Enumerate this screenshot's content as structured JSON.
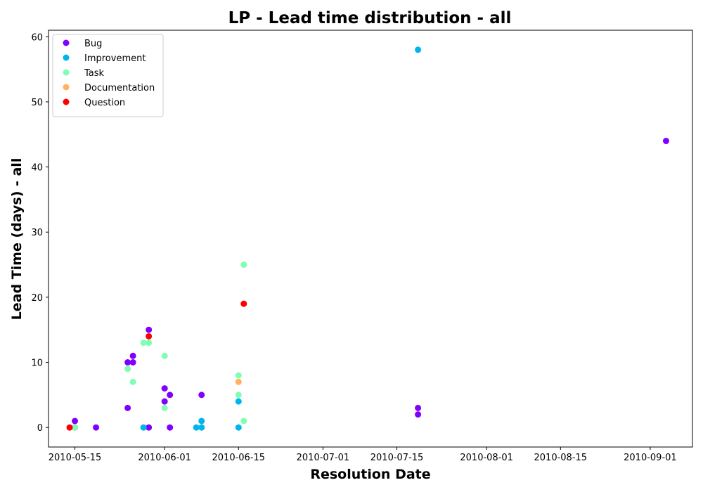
{
  "chart_data": {
    "type": "scatter",
    "title": "LP - Lead time distribution - all",
    "xlabel": "Resolution Date",
    "ylabel": "Lead Time (days) - all",
    "xlim": [
      "2010-05-10",
      "2010-09-09"
    ],
    "ylim": [
      -3,
      61
    ],
    "x_ticks": [
      "2010-05-15",
      "2010-06-01",
      "2010-06-15",
      "2010-07-01",
      "2010-07-15",
      "2010-08-01",
      "2010-08-15",
      "2010-09-01"
    ],
    "y_ticks": [
      0,
      10,
      20,
      30,
      40,
      50,
      60
    ],
    "grid": false,
    "legend_position": "upper-left",
    "series": [
      {
        "name": "Bug",
        "color": "#8000ff",
        "points": [
          {
            "x": "2010-05-15",
            "y": 1
          },
          {
            "x": "2010-05-15",
            "y": 0
          },
          {
            "x": "2010-05-19",
            "y": 0
          },
          {
            "x": "2010-05-25",
            "y": 10
          },
          {
            "x": "2010-05-25",
            "y": 3
          },
          {
            "x": "2010-05-26",
            "y": 11
          },
          {
            "x": "2010-05-26",
            "y": 10
          },
          {
            "x": "2010-05-29",
            "y": 15
          },
          {
            "x": "2010-05-29",
            "y": 0
          },
          {
            "x": "2010-06-01",
            "y": 6
          },
          {
            "x": "2010-06-01",
            "y": 4
          },
          {
            "x": "2010-06-02",
            "y": 5
          },
          {
            "x": "2010-06-02",
            "y": 0
          },
          {
            "x": "2010-06-08",
            "y": 5
          },
          {
            "x": "2010-07-19",
            "y": 3
          },
          {
            "x": "2010-07-19",
            "y": 2
          },
          {
            "x": "2010-09-04",
            "y": 44
          }
        ]
      },
      {
        "name": "Improvement",
        "color": "#00b5eb",
        "points": [
          {
            "x": "2010-05-28",
            "y": 0
          },
          {
            "x": "2010-06-07",
            "y": 0
          },
          {
            "x": "2010-06-08",
            "y": 1
          },
          {
            "x": "2010-06-08",
            "y": 0
          },
          {
            "x": "2010-06-15",
            "y": 4
          },
          {
            "x": "2010-06-15",
            "y": 0
          },
          {
            "x": "2010-07-19",
            "y": 58
          }
        ]
      },
      {
        "name": "Task",
        "color": "#80ffb4",
        "points": [
          {
            "x": "2010-05-15",
            "y": 0
          },
          {
            "x": "2010-05-25",
            "y": 9
          },
          {
            "x": "2010-05-26",
            "y": 7
          },
          {
            "x": "2010-05-28",
            "y": 13
          },
          {
            "x": "2010-05-29",
            "y": 13
          },
          {
            "x": "2010-06-01",
            "y": 11
          },
          {
            "x": "2010-06-01",
            "y": 3
          },
          {
            "x": "2010-06-15",
            "y": 8
          },
          {
            "x": "2010-06-15",
            "y": 5
          },
          {
            "x": "2010-06-16",
            "y": 25
          },
          {
            "x": "2010-06-16",
            "y": 1
          }
        ]
      },
      {
        "name": "Documentation",
        "color": "#ffb360",
        "points": [
          {
            "x": "2010-06-15",
            "y": 7
          }
        ]
      },
      {
        "name": "Question",
        "color": "#ff0000",
        "points": [
          {
            "x": "2010-05-14",
            "y": 0
          },
          {
            "x": "2010-05-29",
            "y": 14
          },
          {
            "x": "2010-06-16",
            "y": 19
          }
        ]
      }
    ]
  }
}
